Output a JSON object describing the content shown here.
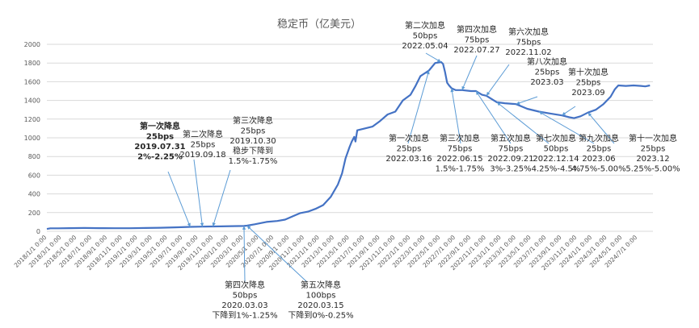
{
  "chart_data": {
    "type": "line",
    "title": "稳定币（亿美元）",
    "xlabel": "",
    "ylabel": "",
    "ylim": [
      0,
      2000
    ],
    "yticks": [
      0,
      200,
      400,
      600,
      800,
      1000,
      1200,
      1400,
      1600,
      1800,
      2000
    ],
    "grid": true,
    "legend": "none",
    "xlim": [
      "2018-01-01",
      "2024-09-01"
    ],
    "x_tick_labels": [
      "2018/1/1 0:00",
      "2018/3/1 0:00",
      "2018/5/1 0:00",
      "2018/7/1 0:00",
      "2018/9/1 0:00",
      "2018/11/1 0:00",
      "2019/1/1 0:00",
      "2019/3/1 0:00",
      "2019/5/1 0:00",
      "2019/7/1 0:00",
      "2019/9/1 0:00",
      "2019/11/1 0:00",
      "2020/1/1 0:00",
      "2020/3/1 0:00",
      "2020/5/1 0:00",
      "2020/7/1 0:00",
      "2020/9/1 0:00",
      "2020/11/1 0:00",
      "2021/1/1 0:00",
      "2021/3/1 0:00",
      "2021/5/1 0:00",
      "2021/7/1 0:00",
      "2021/9/1 0:00",
      "2021/11/1 0:00",
      "2022/1/1 0:00",
      "2022/3/1 0:00",
      "2022/5/1 0:00",
      "2022/7/1 0:00",
      "2022/9/1 0:00",
      "2022/11/1 0:00",
      "2023/1/1 0:00",
      "2023/3/1 0:00",
      "2023/5/1 0:00",
      "2023/7/1 0:00",
      "2023/9/1 0:00",
      "2023/11/1 0:00",
      "2024/1/1 0:00",
      "2024/3/1 0:00",
      "2024/5/1 0:00",
      "2024/7/1 0:00"
    ],
    "series": [
      {
        "name": "",
        "color": "#4472c4",
        "points": [
          [
            "2018-01-01",
            25
          ],
          [
            "2018-01-15",
            32
          ],
          [
            "2018-02-15",
            32
          ],
          [
            "2018-04-01",
            34
          ],
          [
            "2018-06-01",
            35
          ],
          [
            "2018-08-01",
            34
          ],
          [
            "2018-10-01",
            33
          ],
          [
            "2018-12-01",
            33
          ],
          [
            "2019-02-01",
            35
          ],
          [
            "2019-04-01",
            38
          ],
          [
            "2019-06-01",
            42
          ],
          [
            "2019-07-31",
            47
          ],
          [
            "2019-09-18",
            50
          ],
          [
            "2019-10-30",
            52
          ],
          [
            "2019-12-01",
            53
          ],
          [
            "2020-01-15",
            55
          ],
          [
            "2020-03-03",
            57
          ],
          [
            "2020-03-15",
            60
          ],
          [
            "2020-04-15",
            75
          ],
          [
            "2020-06-01",
            100
          ],
          [
            "2020-07-15",
            110
          ],
          [
            "2020-08-15",
            125
          ],
          [
            "2020-09-15",
            160
          ],
          [
            "2020-10-15",
            195
          ],
          [
            "2020-11-15",
            210
          ],
          [
            "2020-12-15",
            240
          ],
          [
            "2021-01-15",
            280
          ],
          [
            "2021-02-15",
            370
          ],
          [
            "2021-03-15",
            500
          ],
          [
            "2021-04-01",
            620
          ],
          [
            "2021-04-15",
            780
          ],
          [
            "2021-05-01",
            900
          ],
          [
            "2021-05-10",
            960
          ],
          [
            "2021-05-20",
            1010
          ],
          [
            "2021-05-25",
            960
          ],
          [
            "2021-06-01",
            1080
          ],
          [
            "2021-07-01",
            1100
          ],
          [
            "2021-08-01",
            1120
          ],
          [
            "2021-09-01",
            1180
          ],
          [
            "2021-10-01",
            1250
          ],
          [
            "2021-11-01",
            1280
          ],
          [
            "2021-12-01",
            1400
          ],
          [
            "2022-01-01",
            1460
          ],
          [
            "2022-01-20",
            1550
          ],
          [
            "2022-02-10",
            1660
          ],
          [
            "2022-03-16",
            1720
          ],
          [
            "2022-04-10",
            1800
          ],
          [
            "2022-05-04",
            1810
          ],
          [
            "2022-05-12",
            1790
          ],
          [
            "2022-05-20",
            1700
          ],
          [
            "2022-05-28",
            1590
          ],
          [
            "2022-06-05",
            1560
          ],
          [
            "2022-06-15",
            1530
          ],
          [
            "2022-07-01",
            1510
          ],
          [
            "2022-07-27",
            1510
          ],
          [
            "2022-09-01",
            1500
          ],
          [
            "2022-09-21",
            1500
          ],
          [
            "2022-10-15",
            1460
          ],
          [
            "2022-11-02",
            1450
          ],
          [
            "2022-12-14",
            1380
          ],
          [
            "2023-01-15",
            1370
          ],
          [
            "2023-03-01",
            1360
          ],
          [
            "2023-04-15",
            1310
          ],
          [
            "2023-06-01",
            1280
          ],
          [
            "2023-07-15",
            1260
          ],
          [
            "2023-09-01",
            1240
          ],
          [
            "2023-10-01",
            1220
          ],
          [
            "2023-10-20",
            1210
          ],
          [
            "2023-11-15",
            1230
          ],
          [
            "2023-12-15",
            1270
          ],
          [
            "2024-01-15",
            1300
          ],
          [
            "2024-02-15",
            1360
          ],
          [
            "2024-03-15",
            1440
          ],
          [
            "2024-04-01",
            1520
          ],
          [
            "2024-04-15",
            1560
          ],
          [
            "2024-05-15",
            1555
          ],
          [
            "2024-06-15",
            1560
          ],
          [
            "2024-07-15",
            1555
          ],
          [
            "2024-08-01",
            1550
          ],
          [
            "2024-08-20",
            1560
          ]
        ]
      }
    ],
    "annotations": [
      {
        "lines": [
          "第一次降息",
          "25bps",
          "2019.07.31",
          "2%-2.25%"
        ],
        "bold": true,
        "target": "2019-07-31"
      },
      {
        "lines": [
          "第二次降息",
          "25bps",
          "2019.09.18"
        ],
        "bold": false,
        "target": "2019-09-18"
      },
      {
        "lines": [
          "第三次降息",
          "25bps",
          "2019.10.30",
          "稳步下降到",
          "1.5%-1.75%"
        ],
        "bold": false,
        "target": "2019-10-30"
      },
      {
        "lines": [
          "第四次降息",
          "50bps",
          "2020.03.03",
          "下降到1%-1.25%"
        ],
        "bold": false,
        "target": "2020-03-03"
      },
      {
        "lines": [
          "第五次降息",
          "100bps",
          "2020.03.15",
          "下降到0%-0.25%"
        ],
        "bold": false,
        "target": "2020-03-15"
      },
      {
        "lines": [
          "第一次加息",
          "25bps",
          "2022.03.16"
        ],
        "bold": false,
        "target": "2022-03-16"
      },
      {
        "lines": [
          "第二次加息",
          "50bps",
          "2022.05.04"
        ],
        "bold": false,
        "target": "2022-05-04"
      },
      {
        "lines": [
          "第三次加息",
          "75bps",
          "2022.06.15",
          "1.5%-1.75%"
        ],
        "bold": false,
        "target": "2022-06-15"
      },
      {
        "lines": [
          "第四次加息",
          "75bps",
          "2022.07.27"
        ],
        "bold": false,
        "target": "2022-07-27"
      },
      {
        "lines": [
          "第五次加息",
          "75bps",
          "2022.09.21",
          "3%-3.25%"
        ],
        "bold": false,
        "target": "2022-09-21"
      },
      {
        "lines": [
          "第六次加息",
          "75bps",
          "2022.11.02"
        ],
        "bold": false,
        "target": "2022-11-02"
      },
      {
        "lines": [
          "第七次加息",
          "50bps",
          "2022.12.14",
          "4.25%-4.5%"
        ],
        "bold": false,
        "target": "2022-12-14"
      },
      {
        "lines": [
          "第八次加息",
          "25bps",
          "2023.03"
        ],
        "bold": false,
        "target": "2023-03-01"
      },
      {
        "lines": [
          "第九次加息",
          "25bps",
          "2023.06",
          "4.75%-5.00%"
        ],
        "bold": false,
        "target": "2023-06-01"
      },
      {
        "lines": [
          "第十次加息",
          "25bps",
          "2023.09"
        ],
        "bold": false,
        "target": "2023-09-01"
      },
      {
        "lines": [
          "第十一次加息",
          "25bps",
          "2023.12",
          "5.25%-5.00%"
        ],
        "bold": false,
        "target": "2023-12-15"
      }
    ]
  }
}
